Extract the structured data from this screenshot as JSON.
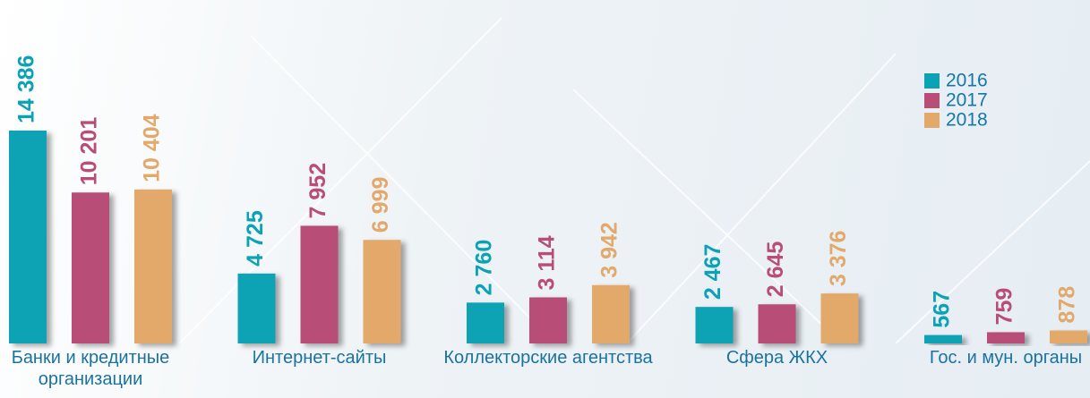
{
  "chart_data": {
    "type": "bar",
    "categories": [
      "Банки и кредитные организации",
      "Интернет-сайты",
      "Коллекторские агентства",
      "Сфера ЖКХ",
      "Гос. и мун. органы"
    ],
    "series": [
      {
        "name": "2016",
        "color": "#0aa2b4",
        "values": [
          14386,
          4725,
          2760,
          2467,
          567
        ],
        "value_labels": [
          "14 386",
          "4 725",
          "2 760",
          "2 467",
          "567"
        ]
      },
      {
        "name": "2017",
        "color": "#b84e78",
        "values": [
          10201,
          7952,
          3114,
          2645,
          759
        ],
        "value_labels": [
          "10 201",
          "7 952",
          "3 114",
          "2 645",
          "759"
        ]
      },
      {
        "name": "2018",
        "color": "#e2a96b",
        "values": [
          10404,
          6999,
          3942,
          3376,
          878
        ],
        "value_labels": [
          "10 404",
          "6 999",
          "3 942",
          "3 376",
          "878"
        ]
      }
    ],
    "legend": "top-right"
  }
}
